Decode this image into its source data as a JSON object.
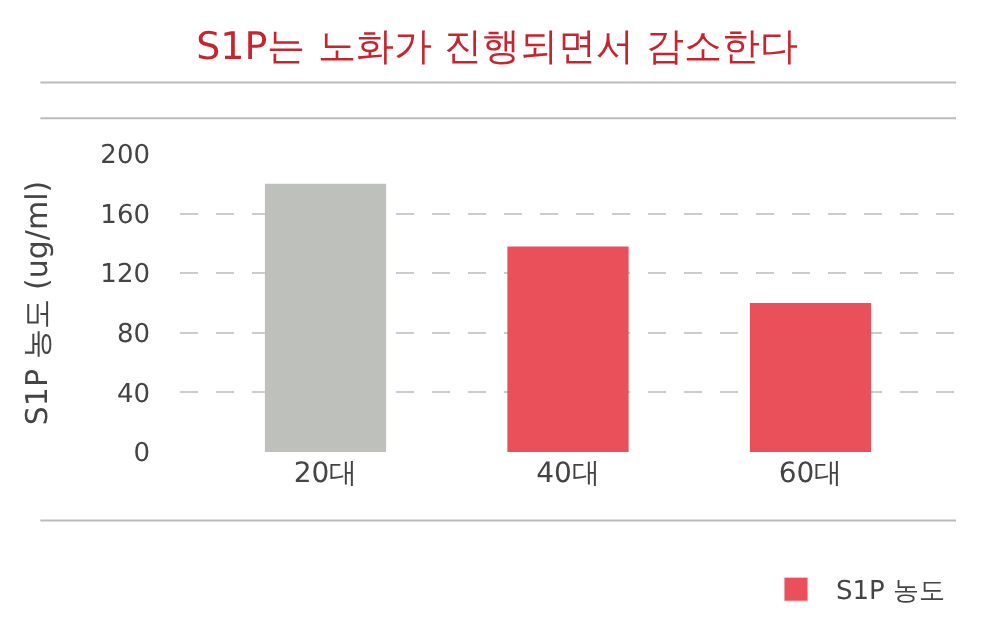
{
  "chart_data": {
    "type": "bar",
    "title": "S1P는 노화가 진행되면서 감소한다",
    "ylabel": "S1P 농도 (ug/ml)",
    "categories": [
      "20대",
      "40대",
      "60대"
    ],
    "series": [
      {
        "name": "S1P 농도",
        "color": "#e9505a",
        "colors": [
          "#bec0bb",
          "#e9505a",
          "#e9505a"
        ],
        "values": [
          180,
          138,
          100
        ]
      }
    ],
    "ylim": [
      0,
      200
    ],
    "yticks": [
      0,
      40,
      80,
      120,
      160,
      200
    ],
    "grid": "y",
    "legend": "bottom right"
  }
}
